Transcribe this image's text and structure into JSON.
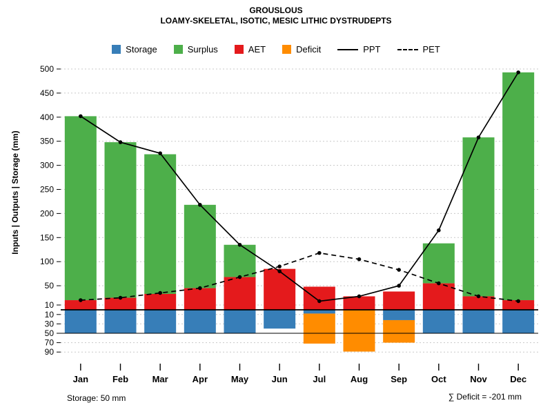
{
  "chart_data": {
    "type": "bar",
    "title": "GROUSLOUS",
    "subtitle": "LOAMY-SKELETAL, ISOTIC, MESIC LITHIC DYSTRUDEPTS",
    "ylabel": "Inputs | Outputs | Storage  (mm)",
    "xlabel": "",
    "legend_position": "top",
    "grid": true,
    "categories": [
      "Jan",
      "Feb",
      "Mar",
      "Apr",
      "May",
      "Jun",
      "Jul",
      "Aug",
      "Sep",
      "Oct",
      "Nov",
      "Dec"
    ],
    "series": [
      {
        "name": "Storage",
        "kind": "bar-below-axis",
        "color": "#377EB8",
        "values": [
          50,
          50,
          50,
          50,
          50,
          40,
          8,
          0,
          22,
          50,
          50,
          50
        ]
      },
      {
        "name": "Surplus",
        "kind": "bar-stacked-above",
        "color": "#4DAF4A",
        "values": [
          382,
          323,
          290,
          173,
          67,
          0,
          0,
          0,
          0,
          83,
          330,
          473
        ]
      },
      {
        "name": "AET",
        "kind": "bar-stacked-above",
        "color": "#E41A1C",
        "values": [
          20,
          25,
          33,
          45,
          68,
          85,
          48,
          28,
          38,
          55,
          28,
          20
        ]
      },
      {
        "name": "Deficit",
        "kind": "bar-below-axis",
        "color": "#FF8C00",
        "values": [
          0,
          0,
          0,
          0,
          0,
          0,
          64,
          89,
          48,
          0,
          0,
          0
        ]
      },
      {
        "name": "PPT",
        "kind": "line",
        "style": "solid",
        "color": "#000000",
        "values": [
          402,
          348,
          325,
          218,
          135,
          80,
          18,
          28,
          50,
          165,
          358,
          493
        ]
      },
      {
        "name": "PET",
        "kind": "line",
        "style": "dashed",
        "color": "#000000",
        "values": [
          20,
          25,
          35,
          45,
          68,
          90,
          118,
          105,
          83,
          55,
          28,
          18
        ]
      }
    ],
    "y_axis": {
      "upper_ticks": [
        500,
        450,
        400,
        350,
        300,
        250,
        200,
        150,
        100,
        50,
        10
      ],
      "lower_ticks": [
        10,
        30,
        50,
        70,
        90
      ],
      "upper_range": [
        0,
        500
      ],
      "lower_range": [
        0,
        90
      ]
    },
    "storage_capacity_mm": 50,
    "legend": [
      {
        "label": "Storage",
        "marker": "swatch",
        "color": "#377EB8"
      },
      {
        "label": "Surplus",
        "marker": "swatch",
        "color": "#4DAF4A"
      },
      {
        "label": "AET",
        "marker": "swatch",
        "color": "#E41A1C"
      },
      {
        "label": "Deficit",
        "marker": "swatch",
        "color": "#FF8C00"
      },
      {
        "label": "PPT",
        "marker": "solid-line",
        "color": "#000000"
      },
      {
        "label": "PET",
        "marker": "dashed-line",
        "color": "#000000"
      }
    ],
    "annotations": [
      "Storage: 50 mm",
      "∑ Deficit = -201 mm"
    ]
  }
}
